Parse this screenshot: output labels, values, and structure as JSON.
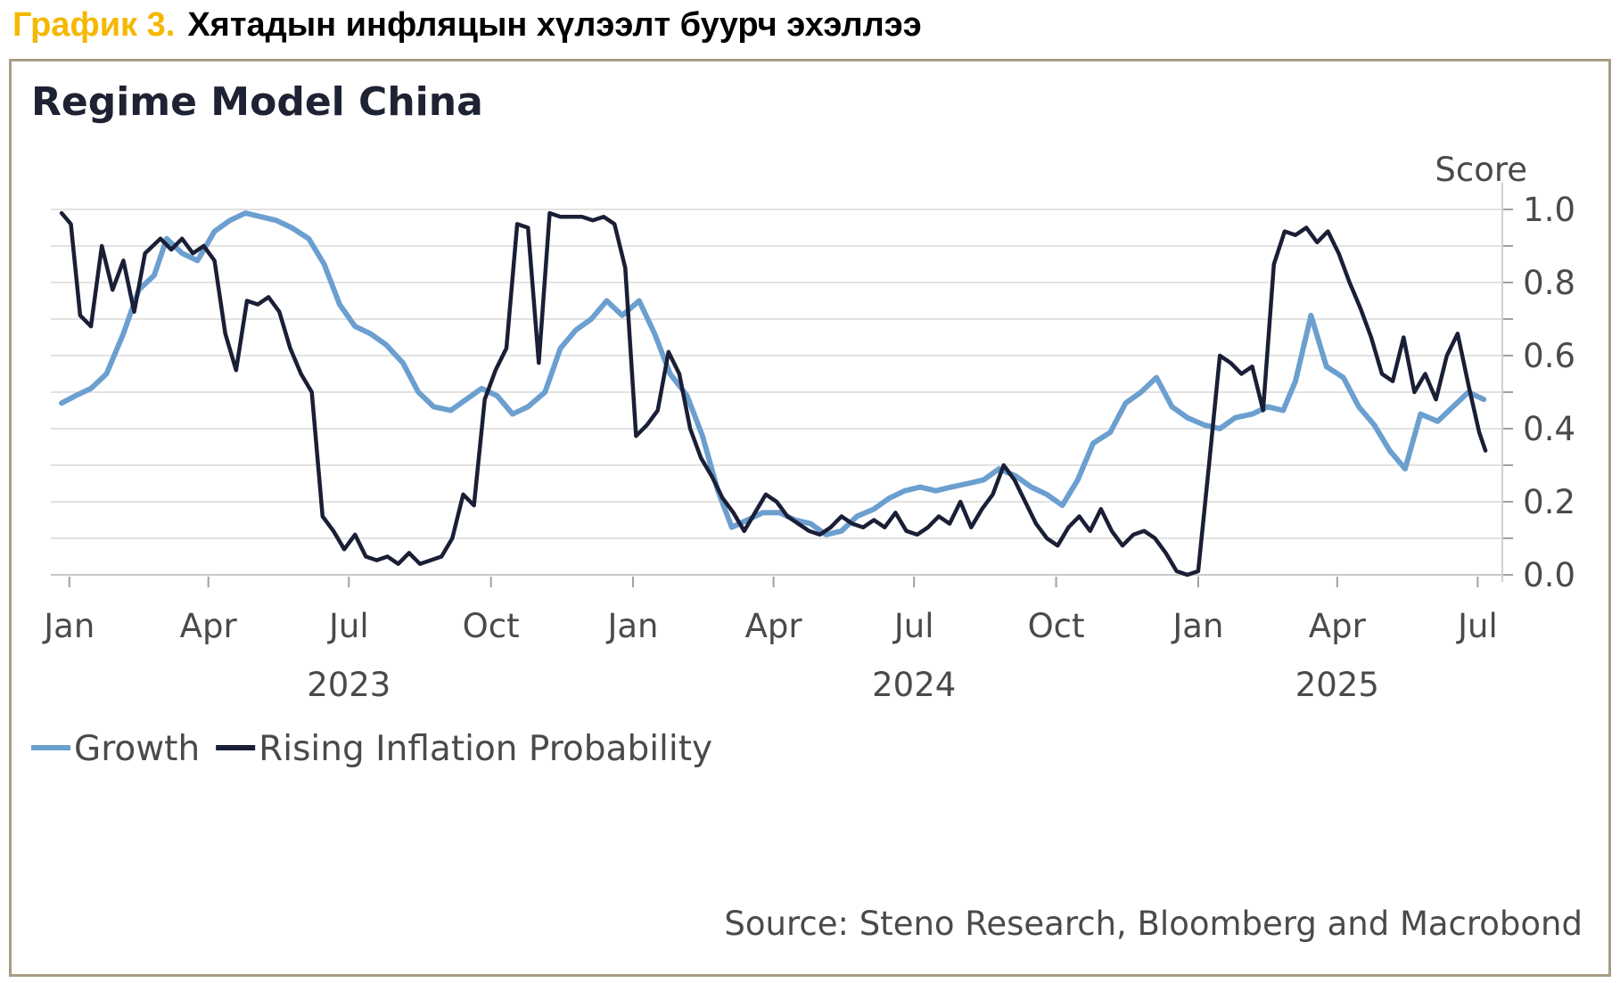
{
  "header": {
    "chart_label": "График 3.",
    "title": "Хятадын инфляцын хүлээлт буурч эхэллээ"
  },
  "colors": {
    "accent_label": "#f5b800",
    "growth": "#6b9fcf",
    "inflation": "#1a1f36",
    "frame": "#a89c86",
    "grid": "#dedede"
  },
  "chart_data": {
    "type": "line",
    "title": "Regime Model China",
    "ylabel": "Score",
    "ylim": [
      0,
      1
    ],
    "yticks": [
      "1.0",
      "0.8",
      "0.6",
      "0.4",
      "0.2",
      "0.0"
    ],
    "grid": true,
    "legend_position": "bottom-left",
    "source": "Source: Steno Research, Bloomberg and Macrobond",
    "x_month_labels": [
      {
        "label": "Jan",
        "date": "2023-01-01"
      },
      {
        "label": "Apr",
        "date": "2023-04-01"
      },
      {
        "label": "Jul",
        "date": "2023-07-01"
      },
      {
        "label": "Oct",
        "date": "2023-10-01"
      },
      {
        "label": "Jan",
        "date": "2024-01-01"
      },
      {
        "label": "Apr",
        "date": "2024-04-01"
      },
      {
        "label": "Jul",
        "date": "2024-07-01"
      },
      {
        "label": "Oct",
        "date": "2024-10-01"
      },
      {
        "label": "Jan",
        "date": "2025-01-01"
      },
      {
        "label": "Apr",
        "date": "2025-04-01"
      },
      {
        "label": "Jul",
        "date": "2025-07-01"
      }
    ],
    "x_year_labels": [
      {
        "label": "2023",
        "date": "2023-07-01"
      },
      {
        "label": "2024",
        "date": "2024-07-01"
      },
      {
        "label": "2025",
        "date": "2025-04-01"
      }
    ],
    "series": [
      {
        "name": "Growth",
        "color": "#6b9fcf",
        "points": [
          [
            "2022-12-27",
            0.47
          ],
          [
            "2023-01-05",
            0.49
          ],
          [
            "2023-01-15",
            0.51
          ],
          [
            "2023-01-25",
            0.55
          ],
          [
            "2023-02-05",
            0.66
          ],
          [
            "2023-02-15",
            0.78
          ],
          [
            "2023-02-25",
            0.82
          ],
          [
            "2023-03-05",
            0.92
          ],
          [
            "2023-03-15",
            0.88
          ],
          [
            "2023-03-25",
            0.86
          ],
          [
            "2023-04-05",
            0.94
          ],
          [
            "2023-04-15",
            0.97
          ],
          [
            "2023-04-25",
            0.99
          ],
          [
            "2023-05-05",
            0.98
          ],
          [
            "2023-05-15",
            0.97
          ],
          [
            "2023-05-25",
            0.95
          ],
          [
            "2023-06-05",
            0.92
          ],
          [
            "2023-06-15",
            0.85
          ],
          [
            "2023-06-25",
            0.74
          ],
          [
            "2023-07-05",
            0.68
          ],
          [
            "2023-07-15",
            0.66
          ],
          [
            "2023-07-25",
            0.63
          ],
          [
            "2023-08-05",
            0.58
          ],
          [
            "2023-08-15",
            0.5
          ],
          [
            "2023-08-25",
            0.46
          ],
          [
            "2023-09-05",
            0.45
          ],
          [
            "2023-09-15",
            0.48
          ],
          [
            "2023-09-25",
            0.51
          ],
          [
            "2023-10-05",
            0.49
          ],
          [
            "2023-10-15",
            0.44
          ],
          [
            "2023-10-25",
            0.46
          ],
          [
            "2023-11-05",
            0.5
          ],
          [
            "2023-11-15",
            0.62
          ],
          [
            "2023-11-25",
            0.67
          ],
          [
            "2023-12-05",
            0.7
          ],
          [
            "2023-12-15",
            0.75
          ],
          [
            "2023-12-25",
            0.71
          ],
          [
            "2024-01-05",
            0.75
          ],
          [
            "2024-01-15",
            0.66
          ],
          [
            "2024-01-25",
            0.55
          ],
          [
            "2024-02-05",
            0.49
          ],
          [
            "2024-02-15",
            0.38
          ],
          [
            "2024-02-25",
            0.23
          ],
          [
            "2024-03-05",
            0.13
          ],
          [
            "2024-03-15",
            0.15
          ],
          [
            "2024-03-25",
            0.17
          ],
          [
            "2024-04-05",
            0.17
          ],
          [
            "2024-04-15",
            0.15
          ],
          [
            "2024-04-25",
            0.14
          ],
          [
            "2024-05-05",
            0.11
          ],
          [
            "2024-05-15",
            0.12
          ],
          [
            "2024-05-25",
            0.16
          ],
          [
            "2024-06-05",
            0.18
          ],
          [
            "2024-06-15",
            0.21
          ],
          [
            "2024-06-25",
            0.23
          ],
          [
            "2024-07-05",
            0.24
          ],
          [
            "2024-07-15",
            0.23
          ],
          [
            "2024-07-25",
            0.24
          ],
          [
            "2024-08-05",
            0.25
          ],
          [
            "2024-08-15",
            0.26
          ],
          [
            "2024-08-25",
            0.29
          ],
          [
            "2024-09-05",
            0.27
          ],
          [
            "2024-09-15",
            0.24
          ],
          [
            "2024-09-25",
            0.22
          ],
          [
            "2024-10-05",
            0.19
          ],
          [
            "2024-10-15",
            0.26
          ],
          [
            "2024-10-25",
            0.36
          ],
          [
            "2024-11-05",
            0.39
          ],
          [
            "2024-11-15",
            0.47
          ],
          [
            "2024-11-25",
            0.5
          ],
          [
            "2024-12-05",
            0.54
          ],
          [
            "2024-12-15",
            0.46
          ],
          [
            "2024-12-25",
            0.43
          ],
          [
            "2025-01-05",
            0.41
          ],
          [
            "2025-01-15",
            0.4
          ],
          [
            "2025-01-25",
            0.43
          ],
          [
            "2025-02-05",
            0.44
          ],
          [
            "2025-02-15",
            0.46
          ],
          [
            "2025-02-25",
            0.45
          ],
          [
            "2025-03-05",
            0.53
          ],
          [
            "2025-03-15",
            0.71
          ],
          [
            "2025-03-25",
            0.57
          ],
          [
            "2025-04-05",
            0.54
          ],
          [
            "2025-04-15",
            0.46
          ],
          [
            "2025-04-25",
            0.41
          ],
          [
            "2025-05-05",
            0.34
          ],
          [
            "2025-05-15",
            0.29
          ],
          [
            "2025-05-25",
            0.44
          ],
          [
            "2025-06-05",
            0.42
          ],
          [
            "2025-06-15",
            0.46
          ],
          [
            "2025-06-25",
            0.5
          ],
          [
            "2025-07-05",
            0.48
          ]
        ]
      },
      {
        "name": "Rising Inflation Probability",
        "color": "#1a1f36",
        "points": [
          [
            "2022-12-27",
            0.99
          ],
          [
            "2023-01-02",
            0.96
          ],
          [
            "2023-01-08",
            0.71
          ],
          [
            "2023-01-15",
            0.68
          ],
          [
            "2023-01-22",
            0.9
          ],
          [
            "2023-01-29",
            0.78
          ],
          [
            "2023-02-05",
            0.86
          ],
          [
            "2023-02-12",
            0.72
          ],
          [
            "2023-02-19",
            0.88
          ],
          [
            "2023-03-01",
            0.92
          ],
          [
            "2023-03-08",
            0.89
          ],
          [
            "2023-03-15",
            0.92
          ],
          [
            "2023-03-22",
            0.88
          ],
          [
            "2023-03-29",
            0.9
          ],
          [
            "2023-04-05",
            0.86
          ],
          [
            "2023-04-12",
            0.66
          ],
          [
            "2023-04-19",
            0.56
          ],
          [
            "2023-04-26",
            0.75
          ],
          [
            "2023-05-03",
            0.74
          ],
          [
            "2023-05-10",
            0.76
          ],
          [
            "2023-05-17",
            0.72
          ],
          [
            "2023-05-24",
            0.62
          ],
          [
            "2023-05-31",
            0.55
          ],
          [
            "2023-06-07",
            0.5
          ],
          [
            "2023-06-14",
            0.16
          ],
          [
            "2023-06-21",
            0.12
          ],
          [
            "2023-06-28",
            0.07
          ],
          [
            "2023-07-05",
            0.11
          ],
          [
            "2023-07-12",
            0.05
          ],
          [
            "2023-07-19",
            0.04
          ],
          [
            "2023-07-26",
            0.05
          ],
          [
            "2023-08-02",
            0.03
          ],
          [
            "2023-08-09",
            0.06
          ],
          [
            "2023-08-16",
            0.03
          ],
          [
            "2023-08-23",
            0.04
          ],
          [
            "2023-08-30",
            0.05
          ],
          [
            "2023-09-06",
            0.1
          ],
          [
            "2023-09-13",
            0.22
          ],
          [
            "2023-09-20",
            0.19
          ],
          [
            "2023-09-27",
            0.48
          ],
          [
            "2023-10-04",
            0.56
          ],
          [
            "2023-10-11",
            0.62
          ],
          [
            "2023-10-18",
            0.96
          ],
          [
            "2023-10-25",
            0.95
          ],
          [
            "2023-11-01",
            0.58
          ],
          [
            "2023-11-08",
            0.99
          ],
          [
            "2023-11-15",
            0.98
          ],
          [
            "2023-11-22",
            0.98
          ],
          [
            "2023-11-29",
            0.98
          ],
          [
            "2023-12-06",
            0.97
          ],
          [
            "2023-12-13",
            0.98
          ],
          [
            "2023-12-20",
            0.96
          ],
          [
            "2023-12-27",
            0.84
          ],
          [
            "2024-01-03",
            0.38
          ],
          [
            "2024-01-10",
            0.41
          ],
          [
            "2024-01-17",
            0.45
          ],
          [
            "2024-01-24",
            0.61
          ],
          [
            "2024-01-31",
            0.55
          ],
          [
            "2024-02-07",
            0.4
          ],
          [
            "2024-02-14",
            0.32
          ],
          [
            "2024-02-21",
            0.27
          ],
          [
            "2024-02-28",
            0.21
          ],
          [
            "2024-03-06",
            0.17
          ],
          [
            "2024-03-13",
            0.12
          ],
          [
            "2024-03-20",
            0.17
          ],
          [
            "2024-03-27",
            0.22
          ],
          [
            "2024-04-03",
            0.2
          ],
          [
            "2024-04-10",
            0.16
          ],
          [
            "2024-04-17",
            0.14
          ],
          [
            "2024-04-24",
            0.12
          ],
          [
            "2024-05-01",
            0.11
          ],
          [
            "2024-05-08",
            0.13
          ],
          [
            "2024-05-15",
            0.16
          ],
          [
            "2024-05-22",
            0.14
          ],
          [
            "2024-05-29",
            0.13
          ],
          [
            "2024-06-05",
            0.15
          ],
          [
            "2024-06-12",
            0.13
          ],
          [
            "2024-06-19",
            0.17
          ],
          [
            "2024-06-26",
            0.12
          ],
          [
            "2024-07-03",
            0.11
          ],
          [
            "2024-07-10",
            0.13
          ],
          [
            "2024-07-17",
            0.16
          ],
          [
            "2024-07-24",
            0.14
          ],
          [
            "2024-07-31",
            0.2
          ],
          [
            "2024-08-07",
            0.13
          ],
          [
            "2024-08-14",
            0.18
          ],
          [
            "2024-08-21",
            0.22
          ],
          [
            "2024-08-28",
            0.3
          ],
          [
            "2024-09-04",
            0.26
          ],
          [
            "2024-09-11",
            0.2
          ],
          [
            "2024-09-18",
            0.14
          ],
          [
            "2024-09-25",
            0.1
          ],
          [
            "2024-10-02",
            0.08
          ],
          [
            "2024-10-09",
            0.13
          ],
          [
            "2024-10-16",
            0.16
          ],
          [
            "2024-10-23",
            0.12
          ],
          [
            "2024-10-30",
            0.18
          ],
          [
            "2024-11-06",
            0.12
          ],
          [
            "2024-11-13",
            0.08
          ],
          [
            "2024-11-20",
            0.11
          ],
          [
            "2024-11-27",
            0.12
          ],
          [
            "2024-12-04",
            0.1
          ],
          [
            "2024-12-11",
            0.06
          ],
          [
            "2024-12-18",
            0.01
          ],
          [
            "2024-12-25",
            0.0
          ],
          [
            "2025-01-01",
            0.01
          ],
          [
            "2025-01-08",
            0.3
          ],
          [
            "2025-01-15",
            0.6
          ],
          [
            "2025-01-22",
            0.58
          ],
          [
            "2025-01-29",
            0.55
          ],
          [
            "2025-02-05",
            0.57
          ],
          [
            "2025-02-12",
            0.45
          ],
          [
            "2025-02-19",
            0.85
          ],
          [
            "2025-02-26",
            0.94
          ],
          [
            "2025-03-05",
            0.93
          ],
          [
            "2025-03-12",
            0.95
          ],
          [
            "2025-03-19",
            0.91
          ],
          [
            "2025-03-26",
            0.94
          ],
          [
            "2025-04-02",
            0.88
          ],
          [
            "2025-04-09",
            0.8
          ],
          [
            "2025-04-16",
            0.73
          ],
          [
            "2025-04-23",
            0.65
          ],
          [
            "2025-04-30",
            0.55
          ],
          [
            "2025-05-07",
            0.53
          ],
          [
            "2025-05-14",
            0.65
          ],
          [
            "2025-05-21",
            0.5
          ],
          [
            "2025-05-28",
            0.55
          ],
          [
            "2025-06-04",
            0.48
          ],
          [
            "2025-06-11",
            0.6
          ],
          [
            "2025-06-18",
            0.66
          ],
          [
            "2025-06-25",
            0.52
          ],
          [
            "2025-07-02",
            0.39
          ],
          [
            "2025-07-06",
            0.34
          ]
        ]
      }
    ]
  }
}
